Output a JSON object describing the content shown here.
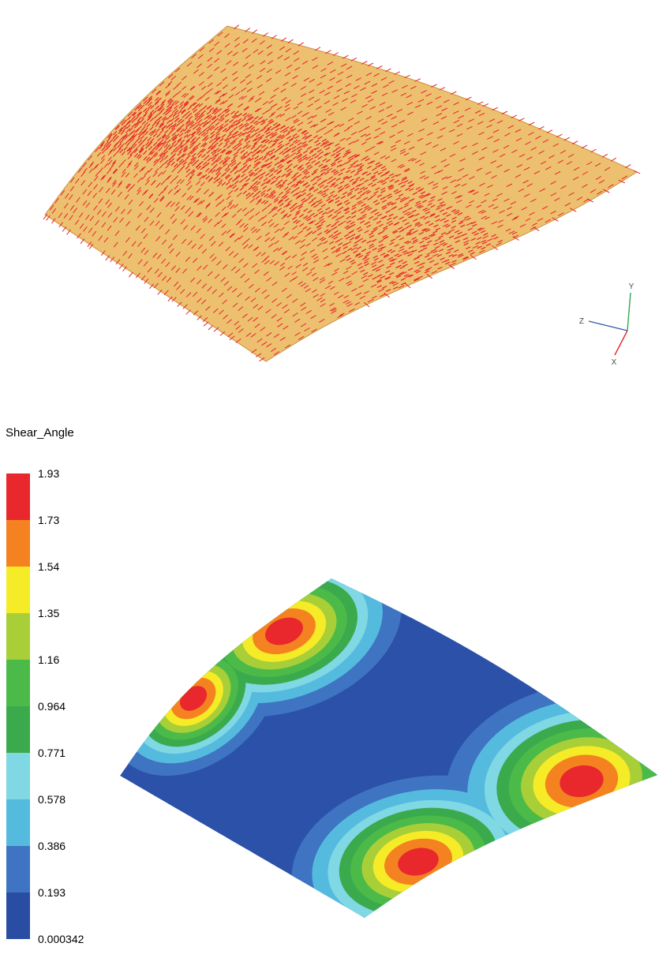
{
  "legend": {
    "title": "Shear_Angle",
    "labels": [
      "1.93",
      "1.73",
      "1.54",
      "1.35",
      "1.16",
      "0.964",
      "0.771",
      "0.578",
      "0.386",
      "0.193",
      "0.000342"
    ],
    "band_colors": [
      "#E8282C",
      "#F58220",
      "#F5EB27",
      "#A8CF38",
      "#4CBA49",
      "#3BAA4C",
      "#7FD8E4",
      "#55BBDE",
      "#3E74C1",
      "#2A4DA4"
    ]
  },
  "axes_triad": {
    "x_label": "X",
    "y_label": "Y",
    "z_label": "Z",
    "x_color": "#E8262B",
    "y_color": "#2FA84F",
    "z_color": "#3A5BA8",
    "label_color": "#4A4A4A"
  },
  "fiber_plot": {
    "surface_color": "#EDC06F",
    "surface_edge_color": "#C8913C",
    "fiber_color": "#E8232B"
  },
  "contour_plot": {
    "base_color": "#2B51A8",
    "ring_colors_outer_to_inner": [
      "#3E74C1",
      "#55BBDE",
      "#7FD8E4",
      "#3BAA4C",
      "#4CBA49",
      "#A8CF38",
      "#F5EB27",
      "#F58220",
      "#E8282C"
    ]
  },
  "chart_data": {
    "type": "heatmap",
    "title": "Shear_Angle",
    "legend_labels": [
      "1.93",
      "1.73",
      "1.54",
      "1.35",
      "1.16",
      "0.964",
      "0.771",
      "0.578",
      "0.386",
      "0.193",
      "0.000342"
    ],
    "legend_values": [
      1.93,
      1.73,
      1.54,
      1.35,
      1.16,
      0.964,
      0.771,
      0.578,
      0.386,
      0.193,
      0.000342
    ],
    "value_range": [
      0.000342,
      1.93
    ],
    "band_colors": [
      "#E8282C",
      "#F58220",
      "#F5EB27",
      "#A8CF38",
      "#4CBA49",
      "#3BAA4C",
      "#7FD8E4",
      "#55BBDE",
      "#3E74C1",
      "#2A4DA4"
    ],
    "peaks": [
      {
        "location": "upper-left",
        "peak_band": "1.73-1.93"
      },
      {
        "location": "left-edge",
        "peak_band": "1.73-1.93"
      },
      {
        "location": "bottom-center",
        "peak_band": "1.73-1.93"
      },
      {
        "location": "right",
        "peak_band": "1.73-1.93"
      }
    ],
    "low_region_band": "0.000342-0.193",
    "legend_position": "left"
  }
}
